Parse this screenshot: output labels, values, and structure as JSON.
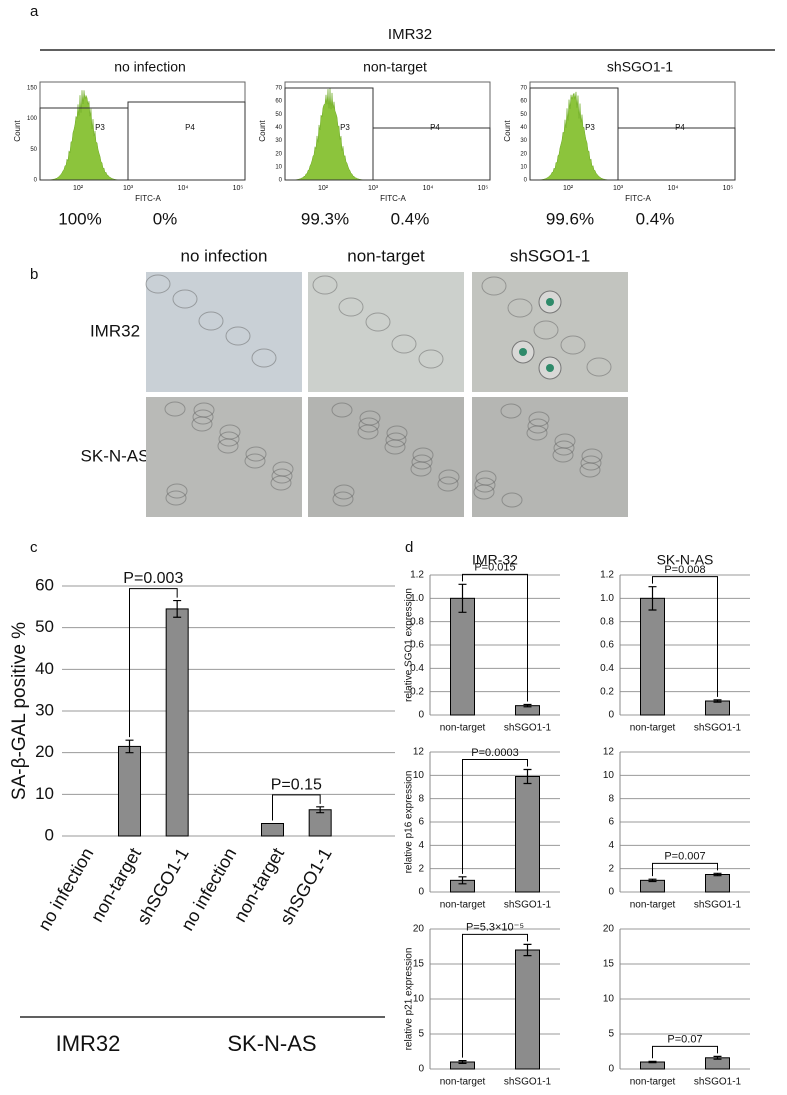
{
  "panel_labels": [
    "a",
    "b",
    "c",
    "d"
  ],
  "flow": {
    "title": "IMR32",
    "panels": [
      {
        "title": "no infection",
        "ylabel": "Count",
        "xlabel": "FITC-A",
        "yticks": [
          "150",
          "100",
          "50",
          "0"
        ],
        "xticks": [
          "10²",
          "10³",
          "10⁴",
          "10⁵"
        ],
        "gates": [
          "P3",
          "P4"
        ],
        "percentages": [
          "100%",
          "0%"
        ]
      },
      {
        "title": "non-target",
        "ylabel": "Count",
        "xlabel": "FITC-A",
        "yticks": [
          "70",
          "60",
          "50",
          "40",
          "30",
          "20",
          "10",
          "0"
        ],
        "xticks": [
          "10²",
          "10³",
          "10⁴",
          "10⁵"
        ],
        "gates": [
          "P3",
          "P4"
        ],
        "percentages": [
          "99.3%",
          "0.4%"
        ]
      },
      {
        "title": "shSGO1-1",
        "ylabel": "Count",
        "xlabel": "FITC-A",
        "yticks": [
          "70",
          "60",
          "50",
          "40",
          "30",
          "20",
          "10",
          "0"
        ],
        "xticks": [
          "10²",
          "10³",
          "10⁴",
          "10⁵"
        ],
        "gates": [
          "P3",
          "P4"
        ],
        "percentages": [
          "99.6%",
          "0.4%"
        ]
      }
    ]
  },
  "microscopy": {
    "columns": [
      "no infection",
      "non-target",
      "shSGO1-1"
    ],
    "rows": [
      "IMR32",
      "SK-N-AS"
    ]
  },
  "chart_data": [
    {
      "type": "bar",
      "ylabel": "SA-β-GAL positive %",
      "categories": [
        "no infection",
        "non-target",
        "shSGO1-1",
        "no infection",
        "non-target",
        "shSGO1-1"
      ],
      "values": [
        0,
        21.5,
        54.5,
        0,
        3,
        6.3
      ],
      "errors": [
        null,
        1.5,
        2,
        null,
        null,
        0.7
      ],
      "color": "#8c8c8c",
      "ylim": [
        0,
        60
      ],
      "yticks": [
        0,
        10,
        20,
        30,
        40,
        50,
        60
      ],
      "grid": true,
      "annotations": [
        "P=0.003",
        "P=0.15"
      ],
      "group_labels": [
        "IMR32",
        "SK-N-AS"
      ]
    },
    {
      "type": "bar",
      "title": "IMR-32",
      "ylabel": "relative SGO1 expression",
      "categories": [
        "non-target",
        "shSGO1-1"
      ],
      "values": [
        1.0,
        0.08
      ],
      "errors": [
        0.12,
        0.01
      ],
      "color": "#8c8c8c",
      "ylim": [
        0,
        1.2
      ],
      "yticks": [
        0,
        0.2,
        0.4,
        0.6,
        0.8,
        {
          "value": 1,
          "label": "1.0"
        },
        1.2
      ],
      "grid": true,
      "annotations": [
        "P=0.015"
      ]
    },
    {
      "type": "bar",
      "title": "SK-N-AS",
      "categories": [
        "non-target",
        "shSGO1-1"
      ],
      "values": [
        1.0,
        0.12
      ],
      "errors": [
        0.1,
        0.01
      ],
      "color": "#8c8c8c",
      "ylim": [
        0,
        1.2
      ],
      "yticks": [
        0,
        0.2,
        0.4,
        0.6,
        0.8,
        {
          "value": 1,
          "label": "1.0"
        },
        1.2
      ],
      "grid": true,
      "annotations": [
        "P=0.008"
      ]
    },
    {
      "type": "bar",
      "ylabel": "relative p16 expression",
      "categories": [
        "non-target",
        "shSGO1-1"
      ],
      "values": [
        1.0,
        9.9
      ],
      "errors": [
        0.3,
        0.6
      ],
      "color": "#8c8c8c",
      "ylim": [
        0,
        12
      ],
      "yticks": [
        0,
        2,
        4,
        6,
        8,
        10,
        12
      ],
      "grid": true,
      "annotations": [
        "P=0.0003"
      ]
    },
    {
      "type": "bar",
      "categories": [
        "non-target",
        "shSGO1-1"
      ],
      "values": [
        1.0,
        1.5
      ],
      "errors": [
        0.1,
        0.1
      ],
      "color": "#8c8c8c",
      "ylim": [
        0,
        12
      ],
      "yticks": [
        0,
        2,
        4,
        6,
        8,
        10,
        12
      ],
      "grid": true,
      "annotations": [
        "P=0.007"
      ]
    },
    {
      "type": "bar",
      "ylabel": "relative p21 expression",
      "categories": [
        "non-target",
        "shSGO1-1"
      ],
      "values": [
        1.0,
        17.0
      ],
      "errors": [
        0.2,
        0.8
      ],
      "color": "#8c8c8c",
      "ylim": [
        0,
        20
      ],
      "yticks": [
        0,
        5,
        10,
        15,
        20
      ],
      "grid": true,
      "annotations": [
        "P=5.3×10⁻⁵"
      ]
    },
    {
      "type": "bar",
      "categories": [
        "non-target",
        "shSGO1-1"
      ],
      "values": [
        1.0,
        1.6
      ],
      "errors": [
        0.1,
        0.2
      ],
      "color": "#8c8c8c",
      "ylim": [
        0,
        20
      ],
      "yticks": [
        0,
        5,
        10,
        15,
        20
      ],
      "grid": true,
      "annotations": [
        "P=0.07"
      ]
    }
  ]
}
